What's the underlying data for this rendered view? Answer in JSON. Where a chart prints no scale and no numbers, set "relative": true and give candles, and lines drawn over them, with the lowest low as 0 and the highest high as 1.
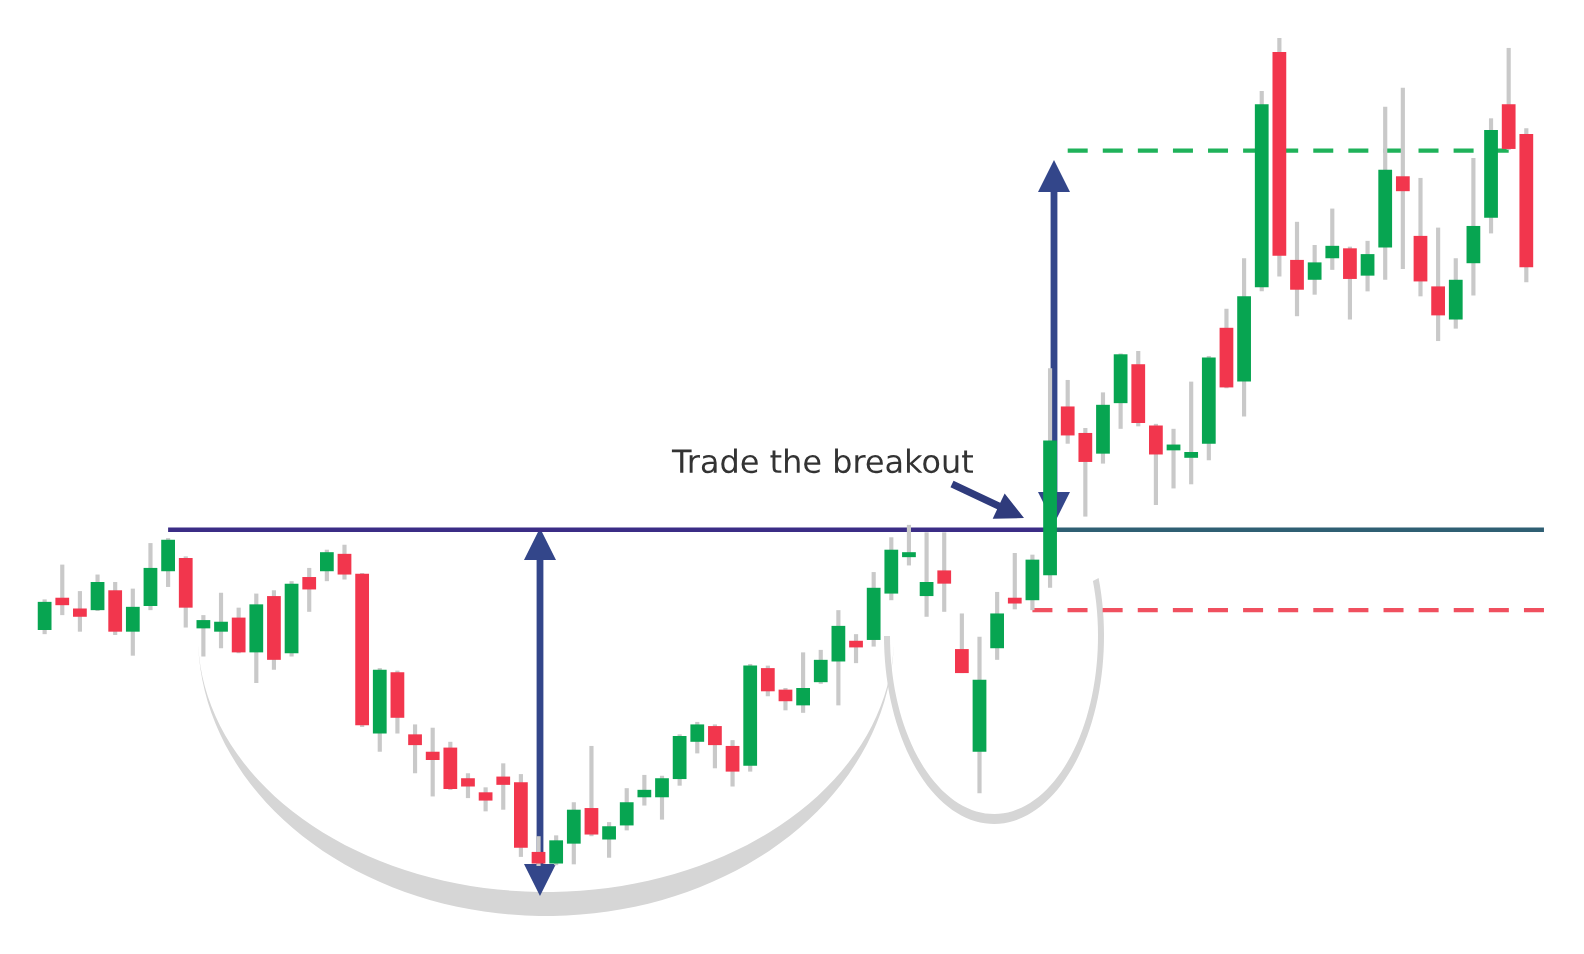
{
  "chart_data": {
    "type": "candlestick",
    "relative": true,
    "tick_labels": false,
    "categories": [
      null,
      null,
      null,
      null,
      null,
      null,
      null,
      null,
      null,
      null,
      null,
      null,
      null,
      null,
      null,
      null,
      null,
      null,
      null,
      null,
      null,
      null,
      null,
      null,
      null,
      null,
      null,
      null,
      null,
      null,
      null,
      null,
      null,
      null,
      null,
      null,
      null,
      null,
      null,
      null,
      null,
      null,
      null,
      null,
      null,
      null,
      null,
      null,
      null,
      null,
      null,
      null,
      null,
      null,
      null,
      null,
      null,
      null,
      null,
      null,
      null,
      null,
      null,
      null,
      null,
      null,
      null,
      null,
      null,
      null,
      null,
      null,
      null,
      null,
      null,
      null,
      null,
      null,
      null,
      null,
      null,
      null,
      null,
      null,
      null
    ],
    "ohlc": [
      [
        0.285,
        0.322,
        0.28,
        0.319
      ],
      [
        0.324,
        0.364,
        0.303,
        0.315
      ],
      [
        0.311,
        0.332,
        0.283,
        0.301
      ],
      [
        0.309,
        0.352,
        0.308,
        0.343
      ],
      [
        0.333,
        0.343,
        0.279,
        0.283
      ],
      [
        0.283,
        0.335,
        0.254,
        0.313
      ],
      [
        0.314,
        0.39,
        0.309,
        0.36
      ],
      [
        0.356,
        0.396,
        0.337,
        0.394
      ],
      [
        0.372,
        0.374,
        0.288,
        0.312
      ],
      [
        0.287,
        0.303,
        0.253,
        0.297
      ],
      [
        0.283,
        0.33,
        0.263,
        0.295
      ],
      [
        0.3,
        0.312,
        0.257,
        0.258
      ],
      [
        0.258,
        0.329,
        0.221,
        0.316
      ],
      [
        0.326,
        0.333,
        0.237,
        0.249
      ],
      [
        0.257,
        0.344,
        0.253,
        0.341
      ],
      [
        0.349,
        0.36,
        0.307,
        0.334
      ],
      [
        0.356,
        0.382,
        0.344,
        0.379
      ],
      [
        0.377,
        0.388,
        0.346,
        0.352
      ],
      [
        0.353,
        0.354,
        0.168,
        0.17
      ],
      [
        0.16,
        0.239,
        0.138,
        0.237
      ],
      [
        0.234,
        0.236,
        0.16,
        0.179
      ],
      [
        0.159,
        0.171,
        0.112,
        0.146
      ],
      [
        0.138,
        0.167,
        0.084,
        0.128
      ],
      [
        0.143,
        0.15,
        0.092,
        0.093
      ],
      [
        0.106,
        0.112,
        0.082,
        0.096
      ],
      [
        0.089,
        0.095,
        0.066,
        0.079
      ],
      [
        0.108,
        0.124,
        0.068,
        0.098
      ],
      [
        0.101,
        0.111,
        0.011,
        0.022
      ],
      [
        0.017,
        0.036,
        0,
        0.003
      ],
      [
        0.003,
        0.037,
        0.001,
        0.031
      ],
      [
        0.027,
        0.077,
        0.002,
        0.068
      ],
      [
        0.07,
        0.145,
        0.036,
        0.038
      ],
      [
        0.032,
        0.053,
        0.01,
        0.048
      ],
      [
        0.049,
        0.094,
        0.043,
        0.077
      ],
      [
        0.083,
        0.11,
        0.073,
        0.092
      ],
      [
        0.083,
        0.109,
        0.056,
        0.106
      ],
      [
        0.105,
        0.159,
        0.097,
        0.157
      ],
      [
        0.15,
        0.174,
        0.136,
        0.171
      ],
      [
        0.169,
        0.171,
        0.118,
        0.146
      ],
      [
        0.145,
        0.152,
        0.096,
        0.114
      ],
      [
        0.121,
        0.244,
        0.114,
        0.242
      ],
      [
        0.239,
        0.242,
        0.205,
        0.211
      ],
      [
        0.213,
        0.215,
        0.188,
        0.199
      ],
      [
        0.194,
        0.258,
        0.185,
        0.215
      ],
      [
        0.222,
        0.261,
        0.22,
        0.249
      ],
      [
        0.247,
        0.309,
        0.194,
        0.29
      ],
      [
        0.272,
        0.28,
        0.245,
        0.264
      ],
      [
        0.273,
        0.355,
        0.265,
        0.336
      ],
      [
        0.329,
        0.397,
        0.321,
        0.382
      ],
      [
        0.373,
        0.412,
        0.363,
        0.379
      ],
      [
        0.326,
        0.403,
        0.301,
        0.343
      ],
      [
        0.357,
        0.403,
        0.307,
        0.341
      ],
      [
        0.262,
        0.305,
        0.233,
        0.233
      ],
      [
        0.138,
        0.277,
        0.088,
        0.225
      ],
      [
        0.263,
        0.331,
        0.249,
        0.305
      ],
      [
        0.324,
        0.378,
        0.31,
        0.317
      ],
      [
        0.321,
        0.376,
        0.309,
        0.37
      ],
      [
        0.351,
        0.601,
        0.336,
        0.514
      ],
      [
        0.555,
        0.587,
        0.51,
        0.52
      ],
      [
        0.523,
        0.529,
        0.422,
        0.488
      ],
      [
        0.498,
        0.572,
        0.486,
        0.557
      ],
      [
        0.559,
        0.619,
        0.528,
        0.618
      ],
      [
        0.606,
        0.622,
        0.531,
        0.535
      ],
      [
        0.532,
        0.534,
        0.436,
        0.497
      ],
      [
        0.502,
        0.528,
        0.456,
        0.509
      ],
      [
        0.493,
        0.585,
        0.461,
        0.5
      ],
      [
        0.51,
        0.616,
        0.49,
        0.614
      ],
      [
        0.65,
        0.673,
        0.577,
        0.578
      ],
      [
        0.585,
        0.734,
        0.543,
        0.688
      ],
      [
        0.699,
        0.936,
        0.694,
        0.92
      ],
      [
        0.983,
        1,
        0.712,
        0.737
      ],
      [
        0.732,
        0.778,
        0.664,
        0.696
      ],
      [
        0.708,
        0.75,
        0.69,
        0.729
      ],
      [
        0.734,
        0.794,
        0.72,
        0.749
      ],
      [
        0.746,
        0.748,
        0.66,
        0.709
      ],
      [
        0.713,
        0.755,
        0.694,
        0.739
      ],
      [
        0.747,
        0.917,
        0.708,
        0.841
      ],
      [
        0.833,
        0.94,
        0.721,
        0.815
      ],
      [
        0.761,
        0.831,
        0.688,
        0.706
      ],
      [
        0.7,
        0.771,
        0.634,
        0.665
      ],
      [
        0.66,
        0.734,
        0.649,
        0.708
      ],
      [
        0.728,
        0.855,
        0.689,
        0.773
      ],
      [
        0.783,
        0.903,
        0.764,
        0.889
      ],
      [
        0.92,
        0.988,
        0.865,
        0.866
      ],
      [
        0.884,
        0.891,
        0.705,
        0.723
      ]
    ],
    "colors": [
      "#07a551",
      "#f2364d",
      "#f2364d",
      "#07a551",
      "#f2364d",
      "#07a551",
      "#07a551",
      "#07a551",
      "#f2364d",
      "#07a551",
      "#07a551",
      "#f2364d",
      "#07a551",
      "#f2364d",
      "#07a551",
      "#f2364d",
      "#07a551",
      "#f2364d",
      "#f2364d",
      "#07a551",
      "#f2364d",
      "#f2364d",
      "#f2364d",
      "#f2364d",
      "#f2364d",
      "#f2364d",
      "#f2364d",
      "#f2364d",
      "#f2364d",
      "#07a551",
      "#07a551",
      "#f2364d",
      "#07a551",
      "#07a551",
      "#07a551",
      "#07a551",
      "#07a551",
      "#07a551",
      "#f2364d",
      "#f2364d",
      "#07a551",
      "#f2364d",
      "#f2364d",
      "#07a551",
      "#07a551",
      "#07a551",
      "#f2364d",
      "#07a551",
      "#07a551",
      "#07a551",
      "#07a551",
      "#f2364d",
      "#f2364d",
      "#07a551",
      "#07a551",
      "#f2364d",
      "#07a551",
      "#07a551",
      "#f2364d",
      "#f2364d",
      "#07a551",
      "#07a551",
      "#f2364d",
      "#f2364d",
      "#07a551",
      "#07a551",
      "#07a551",
      "#f2364d",
      "#07a551",
      "#07a551",
      "#f2364d",
      "#f2364d",
      "#07a551",
      "#07a551",
      "#f2364d",
      "#07a551",
      "#07a551",
      "#f2364d",
      "#f2364d",
      "#f2364d",
      "#07a551",
      "#07a551",
      "#07a551",
      "#f2364d",
      "#f2364d"
    ],
    "series": [
      {
        "type": "line",
        "color": "#3b2d86",
        "values": [
          null,
          null,
          null,
          null,
          null,
          null,
          null,
          0.406,
          0.406,
          0.406,
          0.406,
          0.406,
          0.406,
          0.406,
          0.406,
          0.406,
          0.406,
          0.406,
          0.406,
          0.406,
          0.406,
          0.406,
          0.406,
          0.406,
          0.406,
          0.406,
          0.406,
          0.406,
          0.406,
          0.406,
          0.406,
          0.406,
          0.406,
          0.406,
          0.406,
          0.406,
          0.406,
          0.406,
          0.406,
          0.406,
          0.406,
          0.406,
          0.406,
          0.406,
          0.406,
          0.406,
          0.406,
          0.406,
          0.406,
          0.406,
          0.406,
          0.406,
          0.406,
          0.406,
          0.406,
          0.406,
          0.406,
          0.406,
          null,
          null,
          null,
          null,
          null,
          null,
          null,
          null,
          null,
          null,
          null,
          null,
          null,
          null,
          null,
          null,
          null,
          null,
          null,
          null,
          null,
          null,
          null,
          null,
          null,
          null,
          null
        ]
      },
      {
        "type": "line",
        "color": "#2f5f73",
        "values": [
          null,
          null,
          null,
          null,
          null,
          null,
          null,
          null,
          null,
          null,
          null,
          null,
          null,
          null,
          null,
          null,
          null,
          null,
          null,
          null,
          null,
          null,
          null,
          null,
          null,
          null,
          null,
          null,
          null,
          null,
          null,
          null,
          null,
          null,
          null,
          null,
          null,
          null,
          null,
          null,
          null,
          null,
          null,
          null,
          null,
          null,
          null,
          null,
          null,
          null,
          null,
          null,
          null,
          null,
          null,
          null,
          null,
          0.406,
          0.406,
          0.406,
          0.406,
          0.406,
          0.406,
          0.406,
          0.406,
          0.406,
          0.406,
          0.406,
          0.406,
          0.406,
          0.406,
          0.406,
          0.406,
          0.406,
          0.406,
          0.406,
          0.406,
          0.406,
          0.406,
          0.406,
          0.406,
          0.406,
          0.406,
          0.406,
          0.406
        ]
      },
      {
        "type": "line",
        "color": "#f0505f",
        "line_style": "dashed",
        "values": [
          null,
          null,
          null,
          null,
          null,
          null,
          null,
          null,
          null,
          null,
          null,
          null,
          null,
          null,
          null,
          null,
          null,
          null,
          null,
          null,
          null,
          null,
          null,
          null,
          null,
          null,
          null,
          null,
          null,
          null,
          null,
          null,
          null,
          null,
          null,
          null,
          null,
          null,
          null,
          null,
          null,
          null,
          null,
          null,
          null,
          null,
          null,
          null,
          null,
          null,
          null,
          null,
          null,
          null,
          null,
          null,
          0.309,
          0.309,
          0.309,
          0.309,
          0.309,
          0.309,
          0.309,
          0.309,
          0.309,
          0.309,
          0.309,
          0.309,
          0.309,
          0.309,
          0.309,
          0.309,
          0.309,
          0.309,
          0.309,
          0.309,
          0.309,
          0.309,
          0.309,
          0.309,
          0.309,
          0.309,
          0.309,
          0.309,
          0.309
        ]
      },
      {
        "type": "line",
        "color": "#1fb25a",
        "line_style": "dashed",
        "values": [
          null,
          null,
          null,
          null,
          null,
          null,
          null,
          null,
          null,
          null,
          null,
          null,
          null,
          null,
          null,
          null,
          null,
          null,
          null,
          null,
          null,
          null,
          null,
          null,
          null,
          null,
          null,
          null,
          null,
          null,
          null,
          null,
          null,
          null,
          null,
          null,
          null,
          null,
          null,
          null,
          null,
          null,
          null,
          null,
          null,
          null,
          null,
          null,
          null,
          null,
          null,
          null,
          null,
          null,
          null,
          null,
          null,
          null,
          0.864,
          0.864,
          0.864,
          0.864,
          0.864,
          0.864,
          0.864,
          0.864,
          0.864,
          0.864,
          0.864,
          0.864,
          0.864,
          0.864,
          0.864,
          0.864,
          0.864,
          0.864,
          0.864,
          0.864,
          0.864,
          0.864,
          0.864,
          0.864,
          0.864,
          0.864,
          null
        ]
      }
    ],
    "annotations": [
      "Trade the breakout"
    ]
  }
}
